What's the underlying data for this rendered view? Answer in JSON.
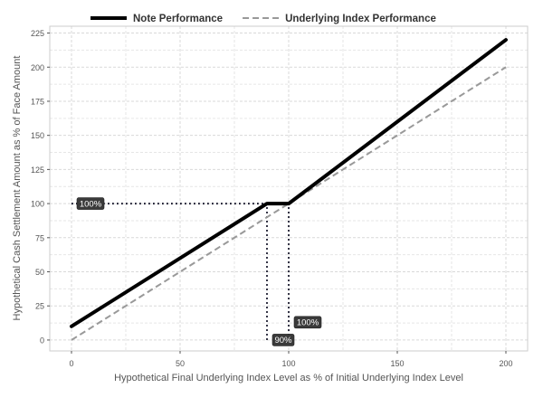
{
  "chart_data": {
    "type": "line",
    "title": "",
    "xlabel": "Hypothetical Final Underlying Index Level as % of Initial Underlying Index Level",
    "ylabel": "Hypothetical Cash Settlement Amount as % of Face Amount",
    "xlim": [
      -10,
      210
    ],
    "ylim": [
      -8,
      230
    ],
    "x_ticks": [
      0,
      50,
      100,
      150,
      200
    ],
    "y_ticks": [
      0,
      25,
      50,
      75,
      100,
      125,
      150,
      175,
      200,
      225
    ],
    "grid": true,
    "legend_position": "top",
    "series": [
      {
        "name": "Note Performance",
        "style": "solid",
        "color": "#000000",
        "x": [
          0,
          90,
          100,
          200
        ],
        "y": [
          10,
          100,
          100,
          220
        ]
      },
      {
        "name": "Underlying Index Performance",
        "style": "dashed",
        "color": "#999999",
        "x": [
          0,
          200
        ],
        "y": [
          0,
          200
        ]
      }
    ],
    "reference_lines": [
      {
        "x": [
          0,
          90
        ],
        "y": [
          100,
          100
        ],
        "style": "dotted",
        "color": "#1a1a2e"
      },
      {
        "x": [
          90,
          90
        ],
        "y": [
          0,
          100
        ],
        "style": "dotted",
        "color": "#1a1a2e"
      },
      {
        "x": [
          100,
          100
        ],
        "y": [
          0,
          100
        ],
        "style": "dotted",
        "color": "#1a1a2e"
      }
    ],
    "annotations": [
      {
        "text": "100%",
        "x": 0,
        "y": 100,
        "anchor": "right"
      },
      {
        "text": "90%",
        "x": 90,
        "y": 0,
        "anchor": "right"
      },
      {
        "text": "100%",
        "x": 100,
        "y": 13,
        "anchor": "right"
      }
    ]
  }
}
